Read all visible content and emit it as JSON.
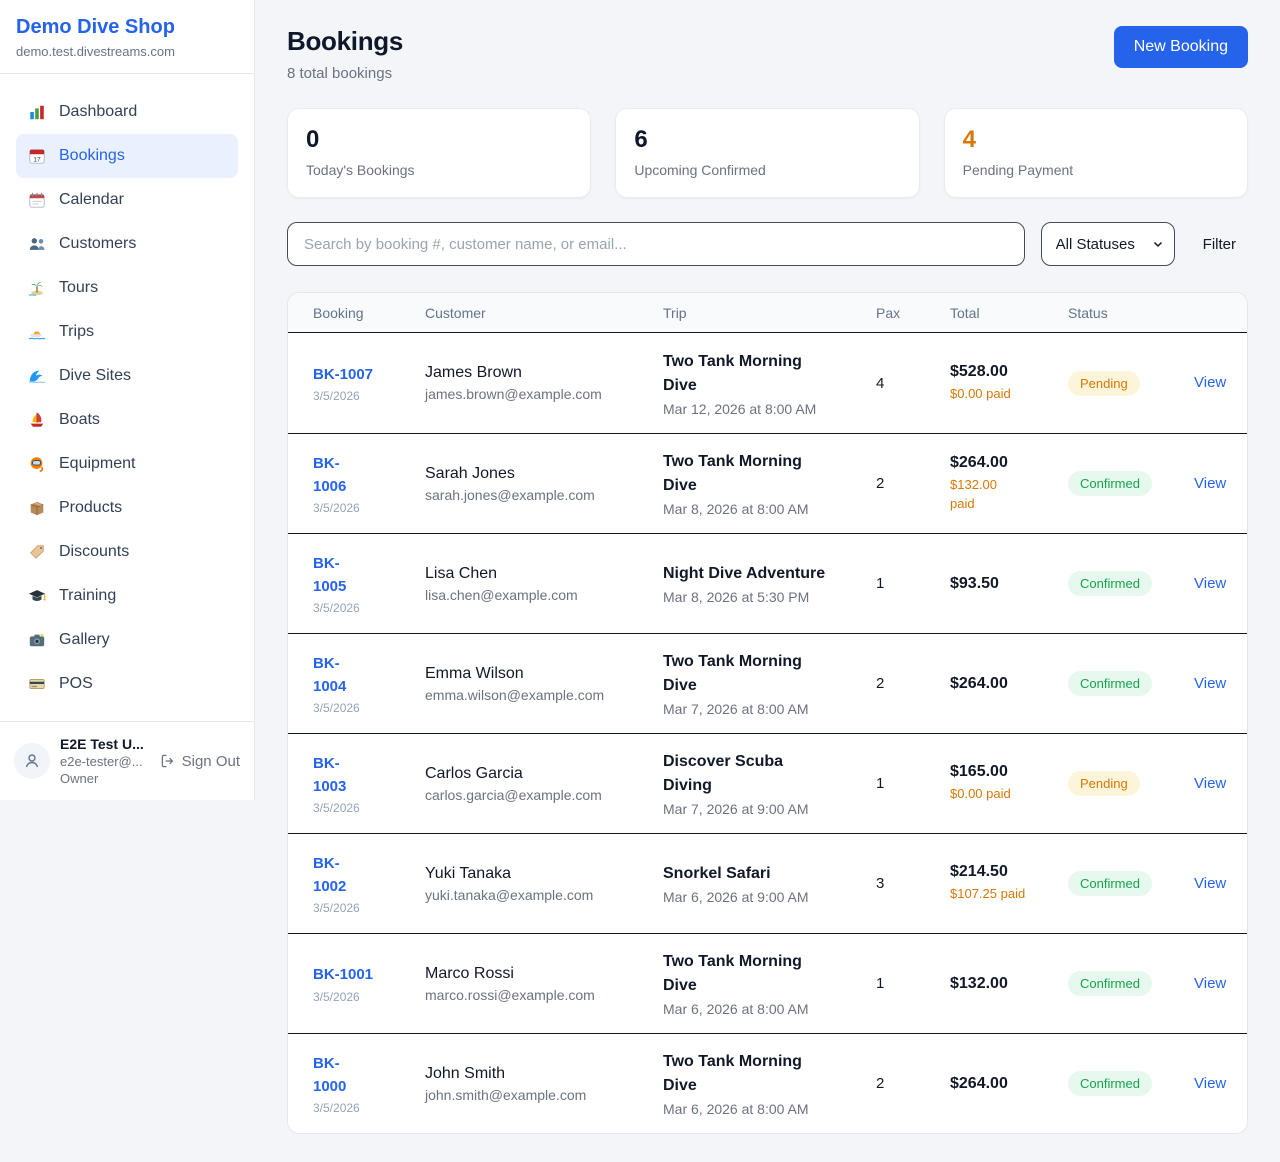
{
  "colors": {
    "accent": "#2563eb",
    "pending_text": "#d97706",
    "pending_bg": "#fdf5da",
    "confirmed_text": "#16a34a",
    "confirmed_bg": "#e7f8ee",
    "highlight_number": "#d97706"
  },
  "sidebar": {
    "brand": {
      "name": "Demo Dive Shop",
      "domain": "demo.test.divestreams.com"
    },
    "items": [
      {
        "label": "Dashboard",
        "icon": "bar-chart",
        "active": false
      },
      {
        "label": "Bookings",
        "icon": "calendar-date",
        "active": true
      },
      {
        "label": "Calendar",
        "icon": "spiral-calendar",
        "active": false
      },
      {
        "label": "Customers",
        "icon": "people",
        "active": false
      },
      {
        "label": "Tours",
        "icon": "island",
        "active": false
      },
      {
        "label": "Trips",
        "icon": "speedboat",
        "active": false
      },
      {
        "label": "Dive Sites",
        "icon": "wave",
        "active": false
      },
      {
        "label": "Boats",
        "icon": "sailboat",
        "active": false
      },
      {
        "label": "Equipment",
        "icon": "dive-mask",
        "active": false
      },
      {
        "label": "Products",
        "icon": "package",
        "active": false
      },
      {
        "label": "Discounts",
        "icon": "tag",
        "active": false
      },
      {
        "label": "Training",
        "icon": "graduation-cap",
        "active": false
      },
      {
        "label": "Gallery",
        "icon": "camera",
        "active": false
      },
      {
        "label": "POS",
        "icon": "credit-card",
        "active": false
      }
    ],
    "user": {
      "name": "E2E Test U...",
      "email": "e2e-tester@...",
      "role": "Owner",
      "sign_out_label": "Sign Out"
    }
  },
  "header": {
    "title": "Bookings",
    "subtitle": "8 total bookings",
    "new_booking_label": "New Booking"
  },
  "stats": [
    {
      "value": "0",
      "label": "Today's Bookings",
      "highlight": false
    },
    {
      "value": "6",
      "label": "Upcoming Confirmed",
      "highlight": false
    },
    {
      "value": "4",
      "label": "Pending Payment",
      "highlight": true
    }
  ],
  "filters": {
    "search_placeholder": "Search by booking #, customer name, or email...",
    "status_filter": "All Statuses",
    "filter_label": "Filter"
  },
  "table": {
    "columns": [
      "Booking",
      "Customer",
      "Trip",
      "Pax",
      "Total",
      "Status"
    ],
    "rows": [
      {
        "booking_lines": [
          "BK-1007"
        ],
        "date": "3/5/2026",
        "customer": "James Brown",
        "email": "james.brown@example.com",
        "trip_lines": [
          "Two Tank Morning",
          "Dive"
        ],
        "trip_datetime": "Mar 12, 2026 at 8:00 AM",
        "pax": "4",
        "total": "$528.00",
        "paid_lines": [
          "$0.00 paid"
        ],
        "status": "Pending",
        "action": "View"
      },
      {
        "booking_lines": [
          "BK-",
          "1006"
        ],
        "date": "3/5/2026",
        "customer": "Sarah Jones",
        "email": "sarah.jones@example.com",
        "trip_lines": [
          "Two Tank Morning",
          "Dive"
        ],
        "trip_datetime": "Mar 8, 2026 at 8:00 AM",
        "pax": "2",
        "total": "$264.00",
        "paid_lines": [
          "$132.00",
          "paid"
        ],
        "status": "Confirmed",
        "action": "View"
      },
      {
        "booking_lines": [
          "BK-",
          "1005"
        ],
        "date": "3/5/2026",
        "customer": "Lisa Chen",
        "email": "lisa.chen@example.com",
        "trip_lines": [
          "Night Dive Adventure"
        ],
        "trip_datetime": "Mar 8, 2026 at 5:30 PM",
        "pax": "1",
        "total": "$93.50",
        "status": "Confirmed",
        "action": "View"
      },
      {
        "booking_lines": [
          "BK-",
          "1004"
        ],
        "date": "3/5/2026",
        "customer": "Emma Wilson",
        "email": "emma.wilson@example.com",
        "trip_lines": [
          "Two Tank Morning",
          "Dive"
        ],
        "trip_datetime": "Mar 7, 2026 at 8:00 AM",
        "pax": "2",
        "total": "$264.00",
        "status": "Confirmed",
        "action": "View"
      },
      {
        "booking_lines": [
          "BK-",
          "1003"
        ],
        "date": "3/5/2026",
        "customer": "Carlos Garcia",
        "email": "carlos.garcia@example.com",
        "trip_lines": [
          "Discover Scuba",
          "Diving"
        ],
        "trip_datetime": "Mar 7, 2026 at 9:00 AM",
        "pax": "1",
        "total": "$165.00",
        "paid_lines": [
          "$0.00 paid"
        ],
        "status": "Pending",
        "action": "View"
      },
      {
        "booking_lines": [
          "BK-",
          "1002"
        ],
        "date": "3/5/2026",
        "customer": "Yuki Tanaka",
        "email": "yuki.tanaka@example.com",
        "trip_lines": [
          "Snorkel Safari"
        ],
        "trip_datetime": "Mar 6, 2026 at 9:00 AM",
        "pax": "3",
        "total": "$214.50",
        "paid_lines": [
          "$107.25 paid"
        ],
        "status": "Confirmed",
        "action": "View"
      },
      {
        "booking_lines": [
          "BK-1001"
        ],
        "date": "3/5/2026",
        "customer": "Marco Rossi",
        "email": "marco.rossi@example.com",
        "trip_lines": [
          "Two Tank Morning",
          "Dive"
        ],
        "trip_datetime": "Mar 6, 2026 at 8:00 AM",
        "pax": "1",
        "total": "$132.00",
        "status": "Confirmed",
        "action": "View"
      },
      {
        "booking_lines": [
          "BK-",
          "1000"
        ],
        "date": "3/5/2026",
        "customer": "John Smith",
        "email": "john.smith@example.com",
        "trip_lines": [
          "Two Tank Morning",
          "Dive"
        ],
        "trip_datetime": "Mar 6, 2026 at 8:00 AM",
        "pax": "2",
        "total": "$264.00",
        "status": "Confirmed",
        "action": "View"
      }
    ]
  }
}
